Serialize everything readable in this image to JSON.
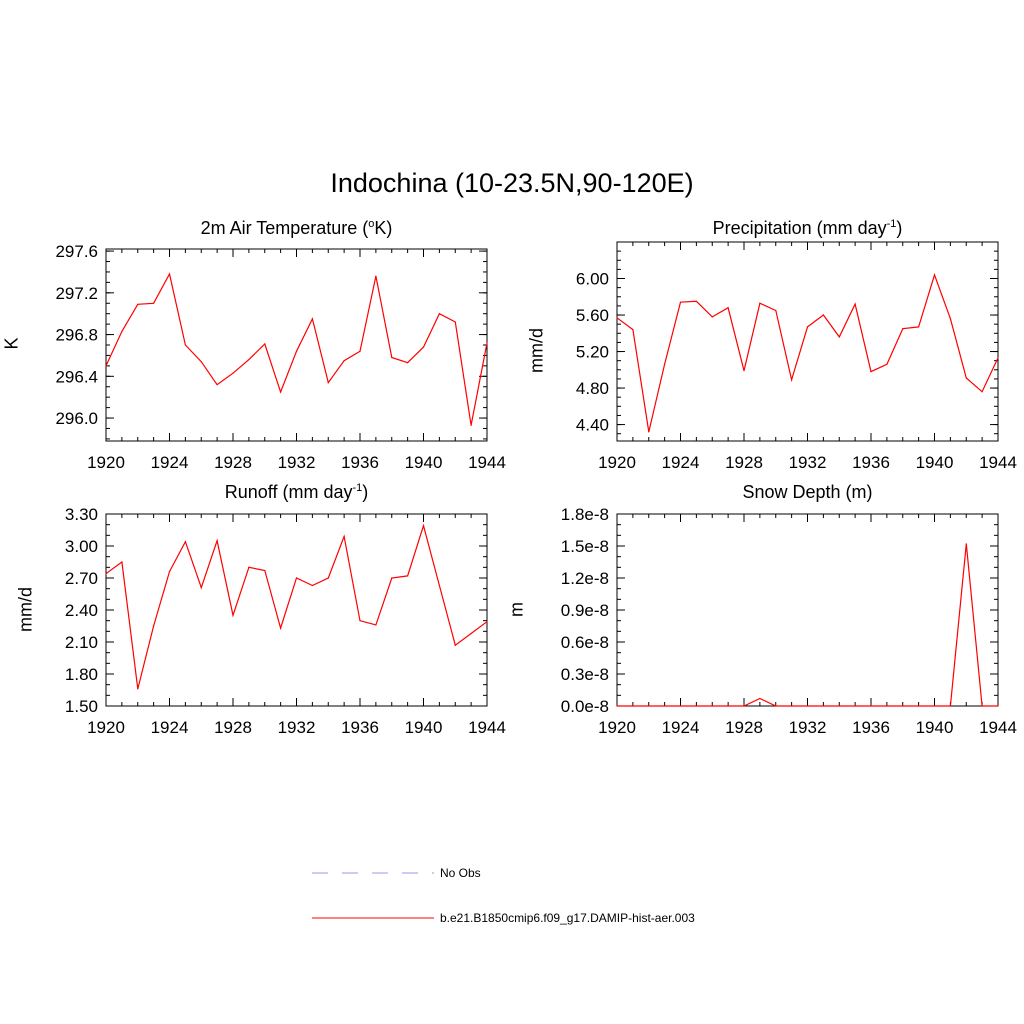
{
  "title": "Indochina (10-23.5N,90-120E)",
  "legend": [
    {
      "label": "No Obs",
      "color": "#9999ee",
      "dash": true
    },
    {
      "label": "b.e21.B1850cmip6.f09_g17.DAMIP-hist-aer.003",
      "color": "#ff0000",
      "dash": false
    }
  ],
  "chart_data": [
    {
      "type": "line",
      "title_main": "2m Air Temperature (",
      "title_sup": "o",
      "title_tail": "K)",
      "ylabel": "K",
      "xlim": [
        1920,
        1944
      ],
      "ylim": [
        295.78,
        297.62
      ],
      "xticks": [
        1920,
        1924,
        1928,
        1932,
        1936,
        1940,
        1944
      ],
      "yticks": [
        296.0,
        296.4,
        296.8,
        297.2,
        297.6
      ],
      "ytick_labels": [
        "296.0",
        "296.4",
        "296.8",
        "297.2",
        "297.6"
      ],
      "yminor": 0.1,
      "series": [
        {
          "color": "#ff0000",
          "x": [
            1920,
            1921,
            1922,
            1923,
            1924,
            1925,
            1926,
            1927,
            1928,
            1929,
            1930,
            1931,
            1932,
            1933,
            1934,
            1935,
            1936,
            1937,
            1938,
            1939,
            1940,
            1941,
            1942,
            1943,
            1944
          ],
          "y": [
            296.5,
            296.83,
            297.09,
            297.1,
            297.38,
            296.7,
            296.54,
            296.32,
            296.43,
            296.56,
            296.71,
            296.25,
            296.64,
            296.95,
            296.34,
            296.55,
            296.64,
            297.36,
            296.58,
            296.53,
            296.68,
            297.0,
            296.92,
            295.93,
            296.72
          ]
        }
      ]
    },
    {
      "type": "line",
      "title_main": "Precipitation (mm day",
      "title_sup": "-1",
      "title_tail": ")",
      "ylabel": "mm/d",
      "xlim": [
        1920,
        1944
      ],
      "ylim": [
        4.22,
        6.4
      ],
      "xticks": [
        1920,
        1924,
        1928,
        1932,
        1936,
        1940,
        1944
      ],
      "yticks": [
        4.4,
        4.8,
        5.2,
        5.6,
        6.0
      ],
      "ytick_labels": [
        "4.40",
        "4.80",
        "5.20",
        "5.60",
        "6.00"
      ],
      "yminor": 0.1,
      "series": [
        {
          "color": "#ff0000",
          "x": [
            1920,
            1921,
            1922,
            1923,
            1924,
            1925,
            1926,
            1927,
            1928,
            1929,
            1930,
            1931,
            1932,
            1933,
            1934,
            1935,
            1936,
            1937,
            1938,
            1939,
            1940,
            1941,
            1942,
            1943,
            1944
          ],
          "y": [
            5.57,
            5.44,
            4.32,
            5.06,
            5.74,
            5.75,
            5.58,
            5.68,
            4.99,
            5.73,
            5.65,
            4.89,
            5.47,
            5.6,
            5.36,
            5.72,
            4.98,
            5.06,
            5.45,
            5.47,
            6.04,
            5.56,
            4.91,
            4.76,
            5.13
          ]
        }
      ]
    },
    {
      "type": "line",
      "title_main": "Runoff (mm day",
      "title_sup": "-1",
      "title_tail": ")",
      "ylabel": "mm/d",
      "xlim": [
        1920,
        1944
      ],
      "ylim": [
        1.5,
        3.3
      ],
      "xticks": [
        1920,
        1924,
        1928,
        1932,
        1936,
        1940,
        1944
      ],
      "yticks": [
        1.5,
        1.8,
        2.1,
        2.4,
        2.7,
        3.0,
        3.3
      ],
      "ytick_labels": [
        "1.50",
        "1.80",
        "2.10",
        "2.40",
        "2.70",
        "3.00",
        "3.30"
      ],
      "yminor": 0.1,
      "series": [
        {
          "color": "#ff0000",
          "x": [
            1920,
            1921,
            1922,
            1923,
            1924,
            1925,
            1926,
            1927,
            1928,
            1929,
            1930,
            1931,
            1932,
            1933,
            1934,
            1935,
            1936,
            1937,
            1938,
            1939,
            1940,
            1941,
            1942,
            1943,
            1944
          ],
          "y": [
            2.74,
            2.85,
            1.66,
            2.25,
            2.76,
            3.04,
            2.61,
            3.05,
            2.35,
            2.8,
            2.77,
            2.23,
            2.7,
            2.63,
            2.7,
            3.09,
            2.3,
            2.26,
            2.7,
            2.72,
            3.19,
            2.63,
            2.07,
            2.18,
            2.29
          ]
        }
      ]
    },
    {
      "type": "line",
      "title_main": "Snow Depth (m)",
      "title_sup": "",
      "title_tail": "",
      "ylabel": "m",
      "xlim": [
        1920,
        1944
      ],
      "ylim": [
        0,
        1.8e-08
      ],
      "xticks": [
        1920,
        1924,
        1928,
        1932,
        1936,
        1940,
        1944
      ],
      "yticks": [
        0,
        3e-09,
        6e-09,
        9e-09,
        1.2e-08,
        1.5e-08,
        1.8e-08
      ],
      "ytick_labels": [
        "0.0e-8",
        "0.3e-8",
        "0.6e-8",
        "0.9e-8",
        "1.2e-8",
        "1.5e-8",
        "1.8e-8"
      ],
      "yminor": 1e-09,
      "series": [
        {
          "color": "#ff0000",
          "x": [
            1920,
            1921,
            1922,
            1923,
            1924,
            1925,
            1926,
            1927,
            1928,
            1929,
            1930,
            1931,
            1932,
            1933,
            1934,
            1935,
            1936,
            1937,
            1938,
            1939,
            1940,
            1941,
            1942,
            1943,
            1944
          ],
          "y": [
            0,
            0,
            0,
            0,
            0,
            0,
            0,
            0,
            0,
            7e-10,
            0,
            0,
            0,
            0,
            0,
            0,
            0,
            0,
            0,
            0,
            0,
            0,
            1.52e-08,
            0,
            0
          ]
        }
      ]
    }
  ]
}
